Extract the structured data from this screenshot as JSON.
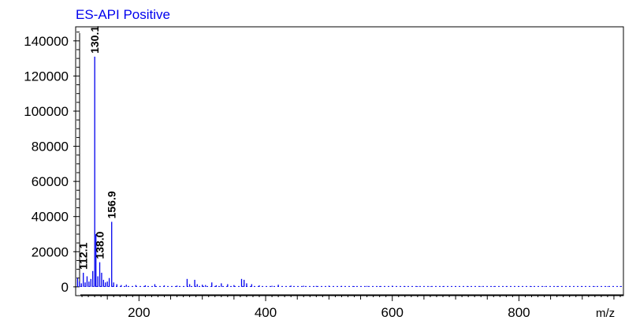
{
  "chart_data": {
    "type": "bar",
    "title": "ES-API Positive",
    "xlabel": "m/z",
    "ylabel": "",
    "xlim": [
      100,
      965
    ],
    "ylim": [
      -5000,
      148000
    ],
    "x_ticks": [
      200,
      400,
      600,
      800
    ],
    "y_ticks": [
      0,
      20000,
      40000,
      60000,
      80000,
      100000,
      120000,
      140000
    ],
    "grid": false,
    "legend": "none",
    "colors": {
      "series": "#0000ee",
      "title": "#0000ee",
      "axis": "#000000"
    },
    "series": [
      {
        "x": [
          103,
          106,
          109,
          112.1,
          115,
          118,
          121,
          124,
          127,
          130.1,
          132,
          135,
          138.0,
          141,
          144,
          147,
          150,
          153,
          156.9,
          160,
          165,
          172,
          180,
          195,
          210,
          225,
          240,
          260,
          276,
          280,
          288,
          292,
          300,
          305,
          315,
          322,
          330,
          340,
          350,
          362,
          366,
          370,
          378,
          390,
          410,
          420,
          440,
          460,
          480,
          500,
          520,
          540,
          560,
          580,
          600,
          620,
          640,
          660,
          680,
          700,
          720,
          740,
          760,
          780,
          800,
          820,
          840,
          860,
          880,
          900,
          920,
          940,
          960
        ],
        "y": [
          5000,
          3000,
          2000,
          8000,
          2500,
          6000,
          3000,
          4500,
          9000,
          131000,
          30000,
          6000,
          14000,
          8000,
          4000,
          2500,
          3000,
          5000,
          37000,
          2500,
          1500,
          1000,
          1200,
          1000,
          900,
          1500,
          800,
          700,
          4500,
          1500,
          4000,
          1500,
          1200,
          1000,
          2500,
          900,
          2000,
          1500,
          1000,
          4500,
          4000,
          2000,
          1500,
          800,
          600,
          1200,
          700,
          600,
          500,
          600,
          500,
          400,
          500,
          400,
          600,
          400,
          400,
          300,
          400,
          300,
          300,
          300,
          300,
          300,
          300,
          300,
          300,
          300,
          300,
          300,
          300,
          300,
          300
        ]
      }
    ],
    "annotations": [
      {
        "text": "130.1",
        "x": 130.1,
        "y": 131000
      },
      {
        "text": "156.9",
        "x": 156.9,
        "y": 37000
      },
      {
        "text": "138.0",
        "x": 138.0,
        "y": 14000
      },
      {
        "text": "112.1",
        "x": 112.1,
        "y": 8000
      }
    ]
  }
}
